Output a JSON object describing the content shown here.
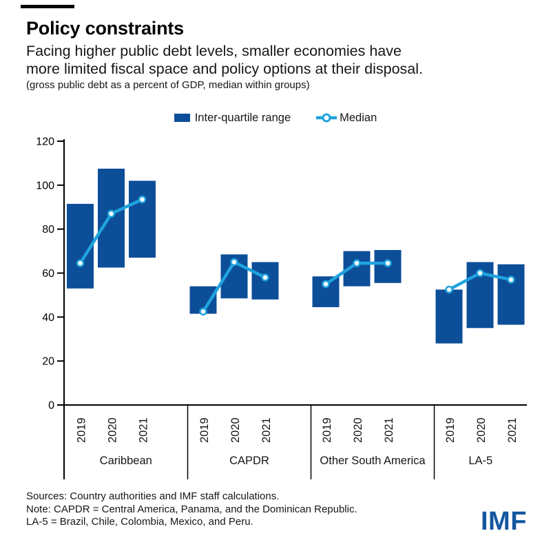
{
  "header": {
    "title": "Policy constraints",
    "subtitle_lines": [
      "Facing higher public debt levels, smaller economies have",
      "more limited fiscal space and policy options at their disposal."
    ],
    "units": "(gross public debt as a percent of GDP, median within groups)"
  },
  "legend": {
    "iqr_label": "Inter-quartile range",
    "median_label": "Median"
  },
  "colors": {
    "iqr_bar": "#0d4e98",
    "median_line": "#1fa3de",
    "marker_fill": "#ffffff",
    "axis": "#000000",
    "logo_blue": "#1457a0"
  },
  "chart_data": {
    "type": "bar",
    "subtype": "floating-interquartile-bars-with-median-line",
    "title": "Policy constraints",
    "xlabel": "",
    "ylabel": "",
    "ylim": [
      0,
      120
    ],
    "yticks": [
      0,
      20,
      40,
      60,
      80,
      100,
      120
    ],
    "grid": false,
    "legend_position": "top-center",
    "years": [
      "2019",
      "2020",
      "2021"
    ],
    "groups": [
      {
        "label": "Caribbean",
        "values": [
          {
            "year": "2019",
            "q1": 53,
            "q3": 91.5,
            "median": 64.5
          },
          {
            "year": "2020",
            "q1": 62.5,
            "q3": 107.5,
            "median": 87
          },
          {
            "year": "2021",
            "q1": 67,
            "q3": 102,
            "median": 93.5
          }
        ]
      },
      {
        "label": "CAPDR",
        "values": [
          {
            "year": "2019",
            "q1": 41.5,
            "q3": 54,
            "median": 42.5
          },
          {
            "year": "2020",
            "q1": 48.5,
            "q3": 68.5,
            "median": 65
          },
          {
            "year": "2021",
            "q1": 48,
            "q3": 65,
            "median": 58
          }
        ]
      },
      {
        "label": "Other South America",
        "values": [
          {
            "year": "2019",
            "q1": 44.5,
            "q3": 58.5,
            "median": 55
          },
          {
            "year": "2020",
            "q1": 54,
            "q3": 70,
            "median": 64.5
          },
          {
            "year": "2021",
            "q1": 55.5,
            "q3": 70.5,
            "median": 64.5
          }
        ]
      },
      {
        "label": "LA-5",
        "values": [
          {
            "year": "2019",
            "q1": 28,
            "q3": 52.5,
            "median": 52.5
          },
          {
            "year": "2020",
            "q1": 35,
            "q3": 65,
            "median": 60
          },
          {
            "year": "2021",
            "q1": 36.5,
            "q3": 64,
            "median": 57
          }
        ]
      }
    ]
  },
  "footer": {
    "lines": [
      "Sources: Country authorities and IMF staff calculations.",
      "Note: CAPDR = Central America, Panama, and the Dominican Republic.",
      "LA-5 = Brazil, Chile, Colombia, Mexico, and Peru."
    ],
    "logo": "IMF"
  }
}
